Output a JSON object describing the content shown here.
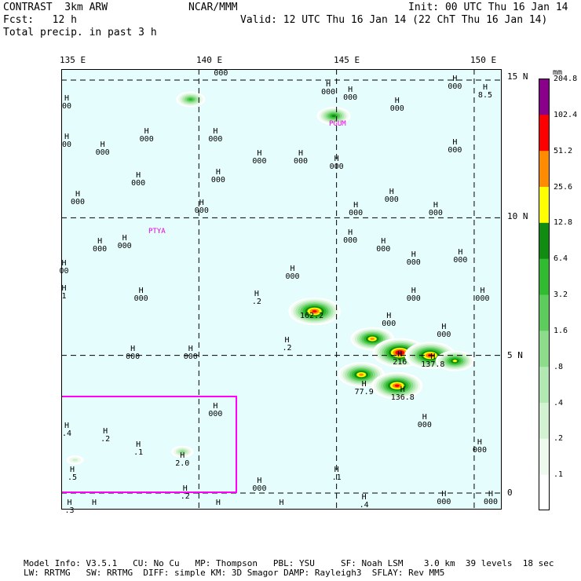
{
  "header": {
    "line1_left": "CONTRAST  3km ARW",
    "line1_mid": "NCAR/MMM",
    "line1_right": "Init: 00 UTC Thu 16 Jan 14",
    "line2_left": "Fcst:   12 h",
    "line2_right": "Valid: 12 UTC Thu 16 Jan 14 (22 ChT Thu 16 Jan 14)",
    "line3_left": "Total precip. in past 3 h"
  },
  "axes": {
    "lon_labels": [
      "135 E",
      "140 E",
      "145 E",
      "150 E"
    ],
    "lat_labels": [
      "15 N",
      "10 N",
      "5 N",
      "0"
    ],
    "lon_range": [
      135,
      151
    ],
    "lat_range": [
      -0.6,
      15.4
    ]
  },
  "sites": [
    "PGUM",
    "PTYA"
  ],
  "stations": [
    {
      "lon": 140.8,
      "lat": 15.2,
      "h": "",
      "v": "000"
    },
    {
      "lon": 144.7,
      "lat": 14.8,
      "h": "H",
      "v": "000"
    },
    {
      "lon": 149.3,
      "lat": 15.0,
      "h": "H",
      "v": "000"
    },
    {
      "lon": 150.4,
      "lat": 14.7,
      "h": "H",
      "v": "8.5"
    },
    {
      "lon": 145.5,
      "lat": 14.6,
      "h": "H",
      "v": "000"
    },
    {
      "lon": 135.2,
      "lat": 14.3,
      "h": "H",
      "v": "00"
    },
    {
      "lon": 147.2,
      "lat": 14.2,
      "h": "H",
      "v": "000"
    },
    {
      "lon": 139.0,
      "lat": 14.3,
      "h": "",
      "v": ""
    },
    {
      "lon": 138.1,
      "lat": 13.1,
      "h": "H",
      "v": "000"
    },
    {
      "lon": 140.6,
      "lat": 13.1,
      "h": "H",
      "v": "000"
    },
    {
      "lon": 135.2,
      "lat": 12.9,
      "h": "H",
      "v": "00"
    },
    {
      "lon": 136.5,
      "lat": 12.6,
      "h": "H",
      "v": "000"
    },
    {
      "lon": 149.3,
      "lat": 12.7,
      "h": "H",
      "v": "000"
    },
    {
      "lon": 142.2,
      "lat": 12.3,
      "h": "H",
      "v": "000"
    },
    {
      "lon": 143.7,
      "lat": 12.3,
      "h": "H",
      "v": "000"
    },
    {
      "lon": 145.0,
      "lat": 12.1,
      "h": "H",
      "v": "000"
    },
    {
      "lon": 137.8,
      "lat": 11.5,
      "h": "H",
      "v": "000"
    },
    {
      "lon": 140.7,
      "lat": 11.6,
      "h": "H",
      "v": "000"
    },
    {
      "lon": 135.6,
      "lat": 10.8,
      "h": "H",
      "v": "000"
    },
    {
      "lon": 140.1,
      "lat": 10.5,
      "h": "H",
      "v": "000"
    },
    {
      "lon": 147.0,
      "lat": 10.9,
      "h": "H",
      "v": "000"
    },
    {
      "lon": 145.7,
      "lat": 10.4,
      "h": "H",
      "v": "000"
    },
    {
      "lon": 148.6,
      "lat": 10.4,
      "h": "H",
      "v": "000"
    },
    {
      "lon": 145.5,
      "lat": 9.4,
      "h": "H",
      "v": "000"
    },
    {
      "lon": 136.4,
      "lat": 9.1,
      "h": "H",
      "v": "000"
    },
    {
      "lon": 137.3,
      "lat": 9.2,
      "h": "H",
      "v": "000"
    },
    {
      "lon": 146.7,
      "lat": 9.1,
      "h": "H",
      "v": "000"
    },
    {
      "lon": 147.8,
      "lat": 8.6,
      "h": "H",
      "v": "000"
    },
    {
      "lon": 149.5,
      "lat": 8.7,
      "h": "H",
      "v": "000"
    },
    {
      "lon": 135.1,
      "lat": 8.3,
      "h": "H",
      "v": "00"
    },
    {
      "lon": 143.4,
      "lat": 8.1,
      "h": "H",
      "v": "000"
    },
    {
      "lon": 135.1,
      "lat": 7.4,
      "h": "H",
      "v": "1"
    },
    {
      "lon": 137.9,
      "lat": 7.3,
      "h": "H",
      "v": "000"
    },
    {
      "lon": 142.1,
      "lat": 7.2,
      "h": "H",
      "v": ".2"
    },
    {
      "lon": 147.8,
      "lat": 7.3,
      "h": "H",
      "v": "000"
    },
    {
      "lon": 150.3,
      "lat": 7.3,
      "h": "H",
      "v": "000"
    },
    {
      "lon": 144.1,
      "lat": 6.4,
      "h": "",
      "v": "162.2"
    },
    {
      "lon": 146.9,
      "lat": 6.4,
      "h": "H",
      "v": "000"
    },
    {
      "lon": 148.9,
      "lat": 6.0,
      "h": "H",
      "v": "000"
    },
    {
      "lon": 143.2,
      "lat": 5.5,
      "h": "H",
      "v": ".2"
    },
    {
      "lon": 137.6,
      "lat": 5.2,
      "h": "H",
      "v": "000"
    },
    {
      "lon": 139.7,
      "lat": 5.2,
      "h": "H",
      "v": "000"
    },
    {
      "lon": 147.3,
      "lat": 5.0,
      "h": "H",
      "v": "216"
    },
    {
      "lon": 148.5,
      "lat": 4.9,
      "h": "H",
      "v": "137.8"
    },
    {
      "lon": 146.0,
      "lat": 3.9,
      "h": "H",
      "v": "77.9"
    },
    {
      "lon": 147.4,
      "lat": 3.7,
      "h": "H",
      "v": "136.8"
    },
    {
      "lon": 140.6,
      "lat": 3.1,
      "h": "H",
      "v": "000"
    },
    {
      "lon": 148.2,
      "lat": 2.7,
      "h": "H",
      "v": "000"
    },
    {
      "lon": 135.2,
      "lat": 2.4,
      "h": "H",
      "v": ".4"
    },
    {
      "lon": 136.6,
      "lat": 2.2,
      "h": "H",
      "v": ".2"
    },
    {
      "lon": 137.8,
      "lat": 1.7,
      "h": "H",
      "v": ".1"
    },
    {
      "lon": 139.4,
      "lat": 1.3,
      "h": "H",
      "v": "2.0"
    },
    {
      "lon": 150.2,
      "lat": 1.8,
      "h": "H",
      "v": "000"
    },
    {
      "lon": 135.4,
      "lat": 0.8,
      "h": "H",
      "v": ".5"
    },
    {
      "lon": 145.0,
      "lat": 0.8,
      "h": "H",
      "v": ".1"
    },
    {
      "lon": 142.2,
      "lat": 0.4,
      "h": "H",
      "v": "000"
    },
    {
      "lon": 139.5,
      "lat": 0.1,
      "h": "H",
      "v": ".2"
    },
    {
      "lon": 135.3,
      "lat": -0.4,
      "h": "H",
      "v": ".3"
    },
    {
      "lon": 136.2,
      "lat": -0.4,
      "h": "H",
      "v": ""
    },
    {
      "lon": 140.7,
      "lat": -0.4,
      "h": "H",
      "v": ""
    },
    {
      "lon": 143.0,
      "lat": -0.4,
      "h": "H",
      "v": ""
    },
    {
      "lon": 146.0,
      "lat": -0.2,
      "h": "H",
      "v": ".4"
    },
    {
      "lon": 148.9,
      "lat": -0.1,
      "h": "H",
      "v": "000"
    },
    {
      "lon": 150.6,
      "lat": -0.1,
      "h": "H",
      "v": "000"
    }
  ],
  "colorbar": {
    "unit": "mm",
    "labels": [
      ".1",
      ".2",
      ".4",
      ".8",
      "1.6",
      "3.2",
      "6.4",
      "12.8",
      "25.6",
      "51.2",
      "102.4",
      "204.8"
    ],
    "colors": [
      "#ffffff",
      "#eefaee",
      "#d2f2d2",
      "#b2e8b2",
      "#8cdc8c",
      "#5ccc5c",
      "#30bb30",
      "#108c10",
      "#ffff00",
      "#ff8c00",
      "#ff0000",
      "#8b008b"
    ]
  },
  "precip": [
    {
      "lon": 139.7,
      "lat": 14.3,
      "v": "6.4"
    },
    {
      "lon": 144.2,
      "lat": 6.6,
      "v": "162.2"
    },
    {
      "lon": 146.3,
      "lat": 5.6,
      "v": "51.2"
    },
    {
      "lon": 147.3,
      "lat": 5.1,
      "v": "216"
    },
    {
      "lon": 148.4,
      "lat": 5.0,
      "v": "137.8"
    },
    {
      "lon": 149.3,
      "lat": 4.8,
      "v": "25.6"
    },
    {
      "lon": 145.9,
      "lat": 4.3,
      "v": "77.9"
    },
    {
      "lon": 147.2,
      "lat": 3.9,
      "v": "136.8"
    },
    {
      "lon": 144.9,
      "lat": 13.7,
      "v": "12.8"
    },
    {
      "lon": 139.4,
      "lat": 1.5,
      "v": "2.0"
    },
    {
      "lon": 135.5,
      "lat": 1.2,
      "v": ".5"
    }
  ],
  "footer": {
    "line1": "Model Info: V3.5.1   CU: No Cu   MP: Thompson   PBL: YSU     SF: Noah LSM    3.0 km  39 levels  18 sec",
    "line2": "LW: RRTMG   SW: RRTMG  DIFF: simple KM: 3D Smagor DAMP: Rayleigh3  SFLAY: Rev MM5"
  }
}
